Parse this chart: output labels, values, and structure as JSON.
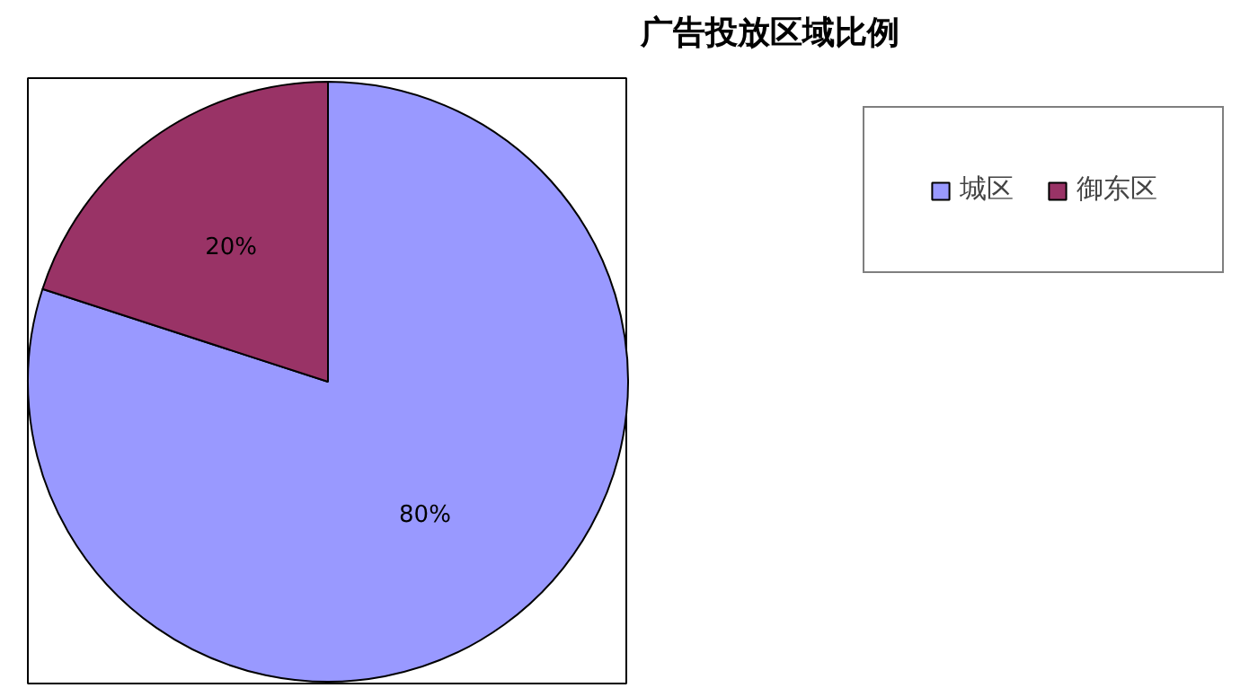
{
  "chart_data": {
    "type": "pie",
    "title": "广告投放区域比例",
    "categories": [
      "城区",
      "御东区"
    ],
    "values": [
      80,
      20
    ],
    "colors": [
      "#9999ff",
      "#993366"
    ],
    "value_labels": [
      "80%",
      "20%"
    ],
    "legend": "top right"
  }
}
